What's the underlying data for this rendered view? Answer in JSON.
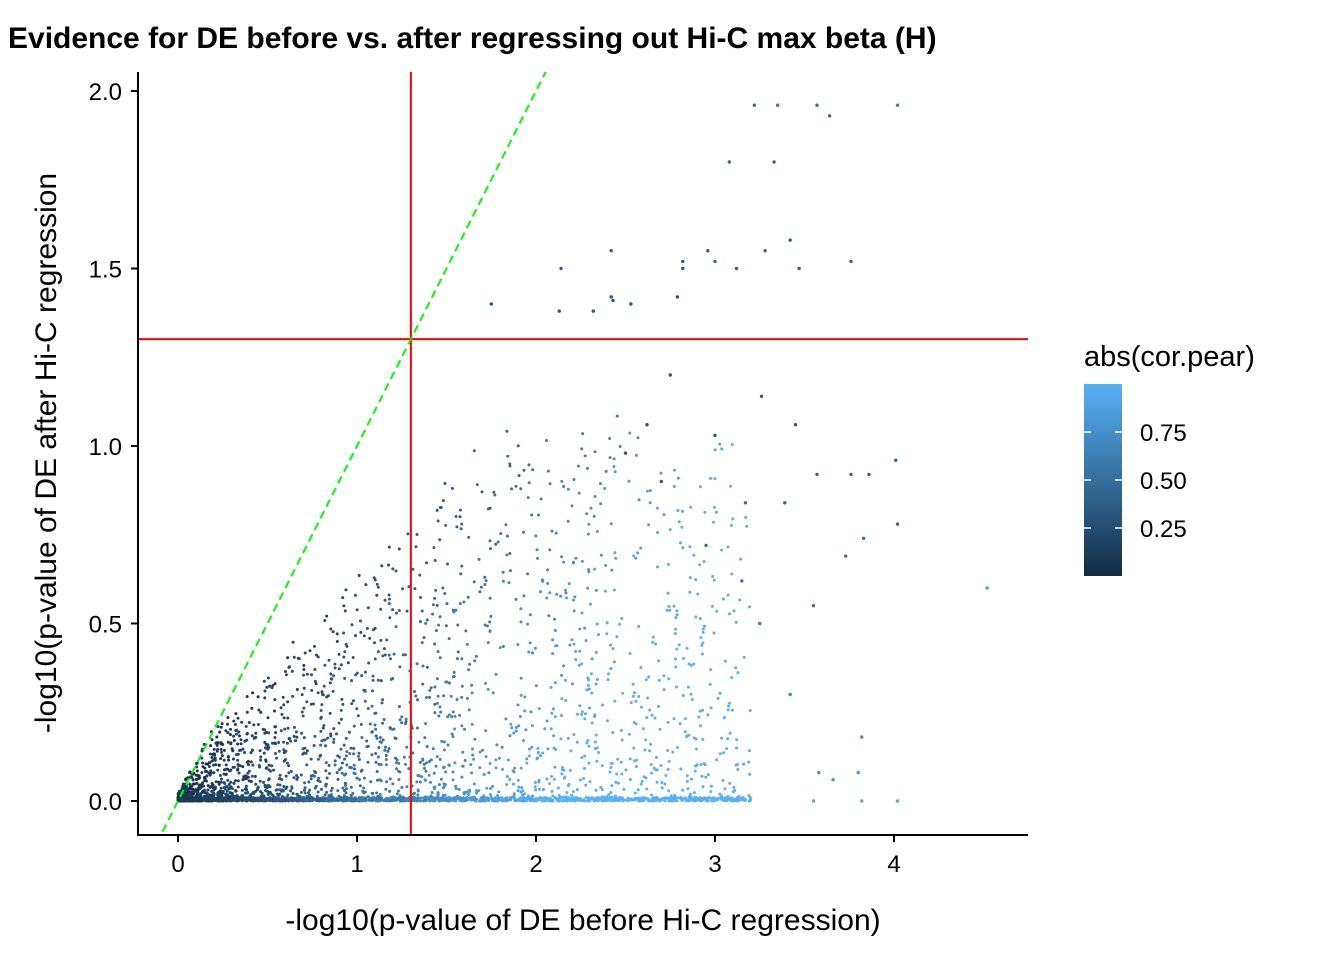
{
  "chart_data": {
    "type": "scatter",
    "title": "Evidence for DE before vs. after regressing out Hi-C max beta (H)",
    "xlabel": "-log10(p-value of DE before Hi-C regression)",
    "ylabel": "-log10(p-value of DE after Hi-C regression",
    "xlim": [
      -0.25,
      4.75
    ],
    "ylim": [
      -0.1,
      2.06
    ],
    "x_ticks": [
      0,
      1,
      2,
      3,
      4
    ],
    "x_tick_labels": [
      "0",
      "1",
      "2",
      "3",
      "4"
    ],
    "y_ticks": [
      0.0,
      0.5,
      1.0,
      1.5,
      2.0
    ],
    "y_tick_labels": [
      "0.0",
      "0.5",
      "1.0",
      "1.5",
      "2.0"
    ],
    "grid": false,
    "reference_lines": {
      "vertical": {
        "x": 1.301,
        "color": "#ff0000"
      },
      "horizontal": {
        "y": 1.301,
        "color": "#ff0000"
      },
      "diagonal": {
        "slope": 1,
        "intercept": 0,
        "color": "#00ff00",
        "style": "dashed"
      }
    },
    "color_scale": {
      "title": "abs(cor.pear)",
      "low_color": "#132b43",
      "high_color": "#56b1f7",
      "range": [
        0.0,
        1.0
      ],
      "ticks": [
        0.25,
        0.5,
        0.75
      ],
      "tick_labels": [
        "0.25",
        "0.50",
        "0.75"
      ],
      "legend_position": "right"
    },
    "points": [
      [
        4.52,
        0.6,
        0.85
      ],
      [
        4.02,
        1.96,
        0.6
      ],
      [
        3.57,
        1.96,
        0.55
      ],
      [
        3.35,
        1.96,
        0.55
      ],
      [
        3.22,
        1.96,
        0.5
      ],
      [
        3.64,
        1.93,
        0.5
      ],
      [
        3.08,
        1.8,
        0.45
      ],
      [
        3.33,
        1.8,
        0.45
      ],
      [
        3.42,
        1.58,
        0.4
      ],
      [
        3.28,
        1.55,
        0.45
      ],
      [
        2.96,
        1.55,
        0.45
      ],
      [
        3.0,
        1.52,
        0.45
      ],
      [
        3.76,
        1.52,
        0.4
      ],
      [
        2.82,
        1.52,
        0.35
      ],
      [
        2.82,
        1.5,
        0.35
      ],
      [
        3.12,
        1.5,
        0.4
      ],
      [
        3.47,
        1.5,
        0.4
      ],
      [
        2.14,
        1.5,
        0.4
      ],
      [
        2.42,
        1.55,
        0.4
      ],
      [
        2.42,
        1.42,
        0.35
      ],
      [
        2.43,
        1.41,
        0.35
      ],
      [
        2.53,
        1.4,
        0.35
      ],
      [
        2.32,
        1.38,
        0.35
      ],
      [
        2.13,
        1.38,
        0.35
      ],
      [
        1.75,
        1.4,
        0.3
      ],
      [
        2.79,
        1.42,
        0.3
      ],
      [
        2.75,
        1.2,
        0.3
      ],
      [
        2.62,
        1.06,
        0.3
      ],
      [
        3.26,
        1.14,
        0.35
      ],
      [
        3.0,
        1.03,
        0.35
      ],
      [
        3.45,
        1.06,
        0.35
      ],
      [
        3.86,
        0.92,
        0.4
      ],
      [
        4.01,
        0.96,
        0.4
      ],
      [
        4.02,
        0.78,
        0.45
      ],
      [
        3.76,
        0.92,
        0.45
      ],
      [
        3.57,
        0.92,
        0.45
      ],
      [
        3.17,
        0.84,
        0.45
      ],
      [
        3.39,
        0.84,
        0.45
      ],
      [
        3.83,
        0.74,
        0.5
      ],
      [
        3.73,
        0.69,
        0.5
      ],
      [
        3.55,
        0.55,
        0.55
      ],
      [
        3.82,
        0.18,
        0.75
      ],
      [
        3.58,
        0.08,
        0.8
      ],
      [
        3.8,
        0.08,
        0.8
      ],
      [
        3.66,
        0.06,
        0.8
      ],
      [
        4.02,
        0.0,
        0.95
      ],
      [
        3.82,
        0.0,
        0.95
      ],
      [
        3.55,
        0.0,
        0.95
      ],
      [
        3.42,
        0.3,
        0.7
      ],
      [
        3.25,
        0.5,
        0.6
      ],
      [
        3.15,
        0.62,
        0.55
      ],
      [
        2.95,
        0.72,
        0.5
      ],
      [
        2.7,
        0.9,
        0.4
      ],
      [
        2.5,
        0.98,
        0.35
      ]
    ]
  }
}
